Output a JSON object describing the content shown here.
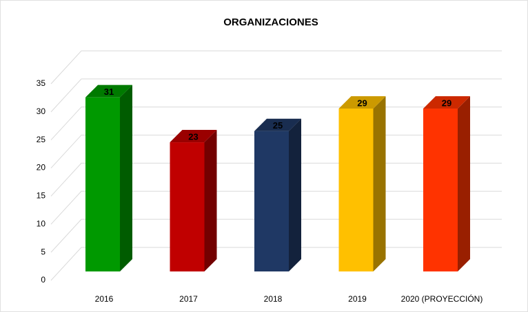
{
  "chart_data": {
    "type": "bar3d",
    "title": "ORGANIZACIONES",
    "categories": [
      "2016",
      "2017",
      "2018",
      "2019",
      "2020 (PROYECCIÓN)"
    ],
    "values": [
      31,
      23,
      25,
      29,
      29
    ],
    "colors": [
      "#009900",
      "#c00000",
      "#1f3864",
      "#ffc000",
      "#ff3300"
    ],
    "ylim": [
      0,
      35
    ],
    "yticks": [
      0,
      5,
      10,
      15,
      20,
      25,
      30,
      35
    ],
    "grid": true
  }
}
